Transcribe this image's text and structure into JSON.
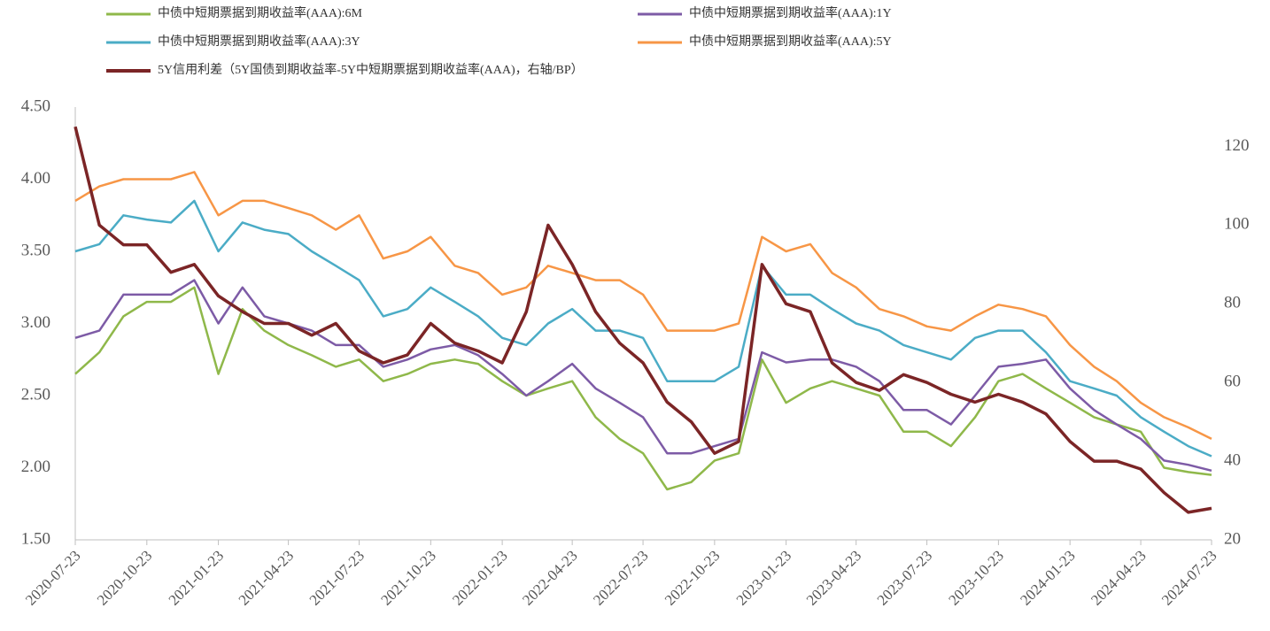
{
  "chart_data": {
    "type": "line",
    "x": [
      "2020-07-23",
      "2020-08-23",
      "2020-09-23",
      "2020-10-23",
      "2020-11-23",
      "2020-12-23",
      "2021-01-23",
      "2021-02-23",
      "2021-03-23",
      "2021-04-23",
      "2021-05-23",
      "2021-06-23",
      "2021-07-23",
      "2021-08-23",
      "2021-09-23",
      "2021-10-23",
      "2021-11-23",
      "2021-12-23",
      "2022-01-23",
      "2022-02-23",
      "2022-03-23",
      "2022-04-23",
      "2022-05-23",
      "2022-06-23",
      "2022-07-23",
      "2022-08-23",
      "2022-09-23",
      "2022-10-23",
      "2022-11-23",
      "2022-12-23",
      "2023-01-23",
      "2023-02-23",
      "2023-03-23",
      "2023-04-23",
      "2023-05-23",
      "2023-06-23",
      "2023-07-23",
      "2023-08-23",
      "2023-09-23",
      "2023-10-23",
      "2023-11-23",
      "2023-12-23",
      "2024-01-23",
      "2024-02-23",
      "2024-03-23",
      "2024-04-23",
      "2024-05-23",
      "2024-06-23",
      "2024-07-23"
    ],
    "xlim": [
      "2020-07-23",
      "2024-07-23"
    ],
    "xticks": [
      "2020-07-23",
      "2020-10-23",
      "2021-01-23",
      "2021-04-23",
      "2021-07-23",
      "2021-10-23",
      "2022-01-23",
      "2022-04-23",
      "2022-07-23",
      "2022-10-23",
      "2023-01-23",
      "2023-04-23",
      "2023-07-23",
      "2023-10-23",
      "2024-01-23",
      "2024-04-23",
      "2024-07-23"
    ],
    "ylim": [
      1.5,
      4.5
    ],
    "yticks": [
      {
        "value": 1.5,
        "label": "1.50"
      },
      {
        "value": 2,
        "label": "2.00"
      },
      {
        "value": 2.5,
        "label": "2.50"
      },
      {
        "value": 3,
        "label": "3.00"
      },
      {
        "value": 3.5,
        "label": "3.50"
      },
      {
        "value": 4,
        "label": "4.00"
      },
      {
        "value": 4.5,
        "label": "4.50"
      }
    ],
    "y2lim": [
      20,
      130
    ],
    "y2ticks": [
      20,
      40,
      60,
      80,
      100,
      120
    ],
    "series": [
      {
        "name": "中债中短期票据到期收益率(AAA):6M",
        "color": "#8fb84a",
        "values": [
          2.65,
          2.8,
          3.05,
          3.15,
          3.15,
          3.25,
          2.65,
          3.1,
          2.95,
          2.85,
          2.78,
          2.7,
          2.75,
          2.6,
          2.65,
          2.72,
          2.75,
          2.72,
          2.6,
          2.5,
          2.55,
          2.6,
          2.35,
          2.2,
          2.1,
          1.85,
          1.9,
          2.05,
          2.1,
          2.75,
          2.45,
          2.55,
          2.6,
          2.55,
          2.5,
          2.25,
          2.25,
          2.15,
          2.35,
          2.6,
          2.65,
          2.55,
          2.45,
          2.35,
          2.3,
          2.25,
          2.0,
          1.97,
          1.95
        ]
      },
      {
        "name": "中债中短期票据到期收益率(AAA):1Y",
        "color": "#7d5ba6",
        "values": [
          2.9,
          2.95,
          3.2,
          3.2,
          3.2,
          3.3,
          3.0,
          3.25,
          3.05,
          3.0,
          2.95,
          2.85,
          2.85,
          2.7,
          2.75,
          2.82,
          2.85,
          2.78,
          2.65,
          2.5,
          2.6,
          2.72,
          2.55,
          2.45,
          2.35,
          2.1,
          2.1,
          2.15,
          2.2,
          2.8,
          2.73,
          2.75,
          2.75,
          2.7,
          2.6,
          2.4,
          2.4,
          2.3,
          2.5,
          2.7,
          2.72,
          2.75,
          2.55,
          2.4,
          2.3,
          2.2,
          2.05,
          2.02,
          1.98
        ]
      },
      {
        "name": "中债中短期票据到期收益率(AAA):3Y",
        "color": "#4bacc6",
        "values": [
          3.5,
          3.55,
          3.75,
          3.72,
          3.7,
          3.85,
          3.5,
          3.7,
          3.65,
          3.62,
          3.5,
          3.4,
          3.3,
          3.05,
          3.1,
          3.25,
          3.15,
          3.05,
          2.9,
          2.85,
          3.0,
          3.1,
          2.95,
          2.95,
          2.9,
          2.6,
          2.6,
          2.6,
          2.7,
          3.4,
          3.2,
          3.2,
          3.1,
          3.0,
          2.95,
          2.85,
          2.8,
          2.75,
          2.9,
          2.95,
          2.95,
          2.8,
          2.6,
          2.55,
          2.5,
          2.35,
          2.25,
          2.15,
          2.08
        ]
      },
      {
        "name": "中债中短期票据到期收益率(AAA):5Y",
        "color": "#f79646",
        "values": [
          3.85,
          3.95,
          4.0,
          4.0,
          4.0,
          4.05,
          3.75,
          3.85,
          3.85,
          3.8,
          3.75,
          3.65,
          3.75,
          3.45,
          3.5,
          3.6,
          3.4,
          3.35,
          3.2,
          3.25,
          3.4,
          3.35,
          3.3,
          3.3,
          3.2,
          2.95,
          2.95,
          2.95,
          3.0,
          3.6,
          3.5,
          3.55,
          3.35,
          3.25,
          3.1,
          3.05,
          2.98,
          2.95,
          3.05,
          3.13,
          3.1,
          3.05,
          2.85,
          2.7,
          2.6,
          2.45,
          2.35,
          2.28,
          2.2
        ]
      },
      {
        "name": "5Y信用利差（5Y国债到期收益率-5Y中短期票据到期收益率(AAA)，右轴/BP）",
        "color": "#7b2526",
        "axis": "y2",
        "values": [
          125,
          100,
          95,
          95,
          88,
          90,
          82,
          78,
          75,
          75,
          72,
          75,
          68,
          65,
          67,
          75,
          70,
          68,
          65,
          78,
          100,
          90,
          78,
          70,
          65,
          55,
          50,
          42,
          45,
          90,
          80,
          78,
          65,
          60,
          58,
          62,
          60,
          57,
          55,
          57,
          55,
          52,
          45,
          40,
          40,
          38,
          32,
          27,
          28
        ]
      }
    ]
  }
}
